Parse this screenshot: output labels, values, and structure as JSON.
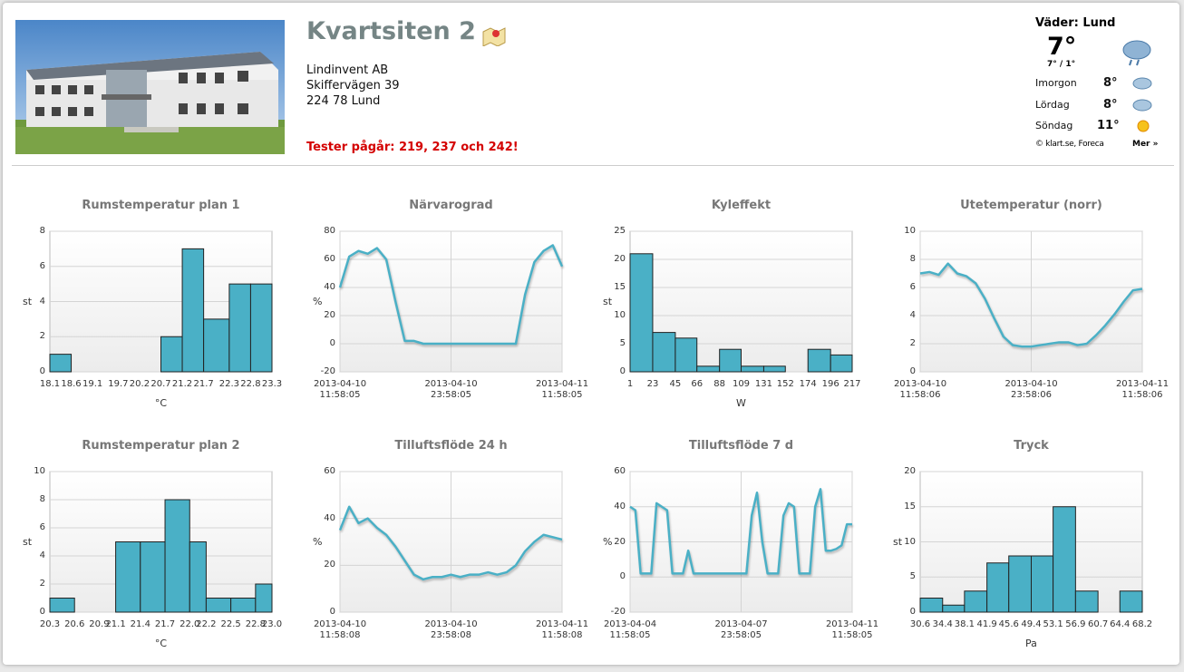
{
  "header": {
    "title": "Kvartsiten 2",
    "address": [
      "Lindinvent AB",
      "Skiffervägen 39",
      "224 78 Lund"
    ],
    "alert": "Tester pågår: 219, 237 och 242!"
  },
  "weather": {
    "title": "Väder: Lund",
    "temp": "7°",
    "range": "7° / 1°",
    "forecast": [
      {
        "day": "Imorgon",
        "temp": "8°"
      },
      {
        "day": "Lördag",
        "temp": "8°"
      },
      {
        "day": "Söndag",
        "temp": "11°"
      }
    ],
    "credit": "© klart.se, Foreca",
    "more": "Mer »"
  },
  "chart_data": [
    {
      "type": "histogram",
      "title": "Rumstemperatur plan 1",
      "ylabel": "st",
      "xlabel": "°C",
      "color": "#4ab0c6",
      "grid": true,
      "bins": [
        18.1,
        18.6,
        19.1,
        19.7,
        20.2,
        20.7,
        21.2,
        21.7,
        22.3,
        22.8,
        23.3
      ],
      "values": [
        1,
        0,
        0,
        0,
        0,
        2,
        7,
        3,
        5,
        5
      ],
      "xlim": [
        18.1,
        23.3
      ],
      "ylim": [
        0,
        8
      ],
      "yticks": [
        0,
        2,
        4,
        6,
        8
      ]
    },
    {
      "type": "line",
      "title": "Närvarograd",
      "ylabel": "%",
      "color": "#4ab0c6",
      "grid": true,
      "x": [
        "2013-04-10 11:58:05",
        "2013-04-10 12:58:05",
        "2013-04-10 13:58:05",
        "2013-04-10 14:58:05",
        "2013-04-10 15:58:05",
        "2013-04-10 16:58:05",
        "2013-04-10 17:58:05",
        "2013-04-10 18:58:05",
        "2013-04-10 19:58:05",
        "2013-04-10 20:58:05",
        "2013-04-10 21:58:05",
        "2013-04-10 22:58:05",
        "2013-04-10 23:58:05",
        "2013-04-11 00:58:05",
        "2013-04-11 01:58:05",
        "2013-04-11 02:58:05",
        "2013-04-11 03:58:05",
        "2013-04-11 04:58:05",
        "2013-04-11 05:58:05",
        "2013-04-11 06:58:05",
        "2013-04-11 07:58:05",
        "2013-04-11 08:58:05",
        "2013-04-11 09:58:05",
        "2013-04-11 10:58:05",
        "2013-04-11 11:58:05"
      ],
      "values": [
        40,
        62,
        66,
        64,
        68,
        60,
        30,
        2,
        2,
        0,
        0,
        0,
        0,
        0,
        0,
        0,
        0,
        0,
        0,
        0,
        35,
        58,
        66,
        70,
        55
      ],
      "xlim": [
        "2013-04-10 11:58:05",
        "2013-04-11 11:58:05"
      ],
      "xticks": [
        "2013-04-10 11:58:05",
        "2013-04-10 23:58:05",
        "2013-04-11 11:58:05"
      ],
      "ylim": [
        -20,
        80
      ],
      "yticks": [
        -20,
        0,
        20,
        40,
        60,
        80
      ]
    },
    {
      "type": "histogram",
      "title": "Kyleffekt",
      "ylabel": "st",
      "xlabel": "W",
      "color": "#4ab0c6",
      "grid": true,
      "bins": [
        1,
        23,
        45,
        66,
        88,
        109,
        131,
        152,
        174,
        196,
        217
      ],
      "values": [
        21,
        7,
        6,
        1,
        4,
        1,
        1,
        0,
        4,
        3
      ],
      "xlim": [
        1,
        217
      ],
      "ylim": [
        0,
        25
      ],
      "yticks": [
        0,
        5,
        10,
        15,
        20,
        25
      ]
    },
    {
      "type": "line",
      "title": "Utetemperatur (norr)",
      "color": "#4ab0c6",
      "grid": true,
      "x": [
        "2013-04-10 11:58:06",
        "2013-04-10 12:58:06",
        "2013-04-10 13:58:06",
        "2013-04-10 14:58:06",
        "2013-04-10 15:58:06",
        "2013-04-10 16:58:06",
        "2013-04-10 17:58:06",
        "2013-04-10 18:58:06",
        "2013-04-10 19:58:06",
        "2013-04-10 20:58:06",
        "2013-04-10 21:58:06",
        "2013-04-10 22:58:06",
        "2013-04-10 23:58:06",
        "2013-04-11 00:58:06",
        "2013-04-11 01:58:06",
        "2013-04-11 02:58:06",
        "2013-04-11 03:58:06",
        "2013-04-11 04:58:06",
        "2013-04-11 05:58:06",
        "2013-04-11 06:58:06",
        "2013-04-11 07:58:06",
        "2013-04-11 08:58:06",
        "2013-04-11 09:58:06",
        "2013-04-11 10:58:06",
        "2013-04-11 11:58:06"
      ],
      "values": [
        7,
        7.1,
        6.9,
        7.7,
        7,
        6.8,
        6.3,
        5.2,
        3.8,
        2.5,
        1.9,
        1.8,
        1.8,
        1.9,
        2,
        2.1,
        2.1,
        1.9,
        2,
        2.6,
        3.3,
        4.1,
        5,
        5.8,
        5.9
      ],
      "xlim": [
        "2013-04-10 11:58:06",
        "2013-04-11 11:58:06"
      ],
      "xticks": [
        "2013-04-10 11:58:06",
        "2013-04-10 23:58:06",
        "2013-04-11 11:58:06"
      ],
      "ylim": [
        0,
        10
      ],
      "yticks": [
        0,
        2,
        4,
        6,
        8,
        10
      ]
    },
    {
      "type": "histogram",
      "title": "Rumstemperatur plan 2",
      "ylabel": "st",
      "xlabel": "°C",
      "color": "#4ab0c6",
      "grid": true,
      "bins": [
        20.3,
        20.6,
        20.9,
        21.1,
        21.4,
        21.7,
        {
          "value": 22,
          "label": "22.0"
        },
        22.2,
        22.5,
        22.8,
        {
          "value": 23,
          "label": "23.0"
        }
      ],
      "values": [
        1,
        0,
        0,
        5,
        5,
        8,
        5,
        1,
        1,
        2
      ],
      "xlim": [
        20.3,
        23
      ],
      "ylim": [
        0,
        10
      ],
      "yticks": [
        0,
        2,
        4,
        6,
        8,
        10
      ]
    },
    {
      "type": "line",
      "title": "Tilluftsflöde 24 h",
      "ylabel": "%",
      "color": "#4ab0c6",
      "grid": true,
      "x": [
        "2013-04-10 11:58:08",
        "2013-04-10 12:58:08",
        "2013-04-10 13:58:08",
        "2013-04-10 14:58:08",
        "2013-04-10 15:58:08",
        "2013-04-10 16:58:08",
        "2013-04-10 17:58:08",
        "2013-04-10 18:58:08",
        "2013-04-10 19:58:08",
        "2013-04-10 20:58:08",
        "2013-04-10 21:58:08",
        "2013-04-10 22:58:08",
        "2013-04-10 23:58:08",
        "2013-04-11 00:58:08",
        "2013-04-11 01:58:08",
        "2013-04-11 02:58:08",
        "2013-04-11 03:58:08",
        "2013-04-11 04:58:08",
        "2013-04-11 05:58:08",
        "2013-04-11 06:58:08",
        "2013-04-11 07:58:08",
        "2013-04-11 08:58:08",
        "2013-04-11 09:58:08",
        "2013-04-11 10:58:08",
        "2013-04-11 11:58:08"
      ],
      "values": [
        35,
        45,
        38,
        40,
        36,
        33,
        28,
        22,
        16,
        14,
        15,
        15,
        16,
        15,
        16,
        16,
        17,
        16,
        17,
        20,
        26,
        30,
        33,
        32,
        31
      ],
      "xlim": [
        "2013-04-10 11:58:08",
        "2013-04-11 11:58:08"
      ],
      "xticks": [
        "2013-04-10 11:58:08",
        "2013-04-10 23:58:08",
        "2013-04-11 11:58:08"
      ],
      "ylim": [
        0,
        60
      ],
      "yticks": [
        0,
        20,
        40,
        60
      ]
    },
    {
      "type": "line",
      "title": "Tilluftsflöde 7 d",
      "ylabel": "%",
      "color": "#4ab0c6",
      "grid": true,
      "x": [
        "2013-04-04 11:58:05",
        "2013-04-04 15:58:05",
        "2013-04-04 19:58:05",
        "2013-04-04 23:58:05",
        "2013-04-05 03:58:05",
        "2013-04-05 07:58:05",
        "2013-04-05 11:58:05",
        "2013-04-05 15:58:05",
        "2013-04-05 19:58:05",
        "2013-04-05 23:58:05",
        "2013-04-06 03:58:05",
        "2013-04-06 07:58:05",
        "2013-04-06 11:58:05",
        "2013-04-06 15:58:05",
        "2013-04-06 19:58:05",
        "2013-04-06 23:58:05",
        "2013-04-07 03:58:05",
        "2013-04-07 07:58:05",
        "2013-04-07 11:58:05",
        "2013-04-07 15:58:05",
        "2013-04-07 19:58:05",
        "2013-04-07 23:58:05",
        "2013-04-08 03:58:05",
        "2013-04-08 07:58:05",
        "2013-04-08 11:58:05",
        "2013-04-08 15:58:05",
        "2013-04-08 19:58:05",
        "2013-04-08 23:58:05",
        "2013-04-09 03:58:05",
        "2013-04-09 07:58:05",
        "2013-04-09 11:58:05",
        "2013-04-09 15:58:05",
        "2013-04-09 19:58:05",
        "2013-04-09 23:58:05",
        "2013-04-10 03:58:05",
        "2013-04-10 07:58:05",
        "2013-04-10 11:58:05",
        "2013-04-10 15:58:05",
        "2013-04-10 19:58:05",
        "2013-04-10 23:58:05",
        "2013-04-11 03:58:05",
        "2013-04-11 07:58:05",
        "2013-04-11 11:58:05"
      ],
      "values": [
        40,
        38,
        2,
        2,
        2,
        42,
        40,
        38,
        2,
        2,
        2,
        15,
        2,
        2,
        2,
        2,
        2,
        2,
        2,
        2,
        2,
        2,
        2,
        35,
        48,
        20,
        2,
        2,
        2,
        35,
        42,
        40,
        2,
        2,
        2,
        40,
        50,
        15,
        15,
        16,
        18,
        30,
        30
      ],
      "xlim": [
        "2013-04-04 11:58:05",
        "2013-04-11 11:58:05"
      ],
      "xticks": [
        "2013-04-04 11:58:05",
        "2013-04-07 23:58:05",
        "2013-04-11 11:58:05"
      ],
      "ylim": [
        -20,
        60
      ],
      "yticks": [
        -20,
        0,
        20,
        40,
        60
      ]
    },
    {
      "type": "histogram",
      "title": "Tryck",
      "ylabel": "st",
      "xlabel": "Pa",
      "color": "#4ab0c6",
      "grid": true,
      "bins": [
        30.6,
        34.4,
        38.1,
        41.9,
        45.6,
        49.4,
        53.1,
        56.9,
        60.7,
        64.4,
        68.2
      ],
      "values": [
        2,
        1,
        3,
        7,
        8,
        8,
        15,
        3,
        0,
        3
      ],
      "xlim": [
        30.6,
        68.2
      ],
      "ylim": [
        0,
        20
      ],
      "yticks": [
        0,
        5,
        10,
        15,
        20
      ]
    }
  ]
}
